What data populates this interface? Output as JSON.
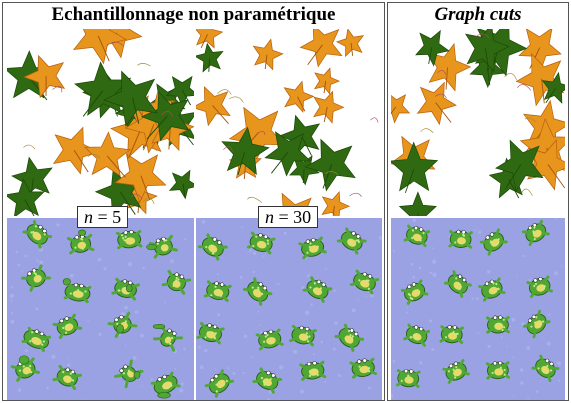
{
  "headers": {
    "left": "Echantillonnage non paramétrique",
    "right": "Graph cuts"
  },
  "labels": {
    "n5": {
      "var": "n",
      "rel": " = ",
      "val": "5"
    },
    "n30": {
      "var": "n",
      "rel": " = ",
      "val": "30"
    }
  },
  "colors": {
    "leaf_orange": "#e7951c",
    "leaf_green": "#2f6a12",
    "frog_green": "#4fa834",
    "background_blue": "#9aa2e3",
    "frog_belly": "#e8da6a"
  }
}
